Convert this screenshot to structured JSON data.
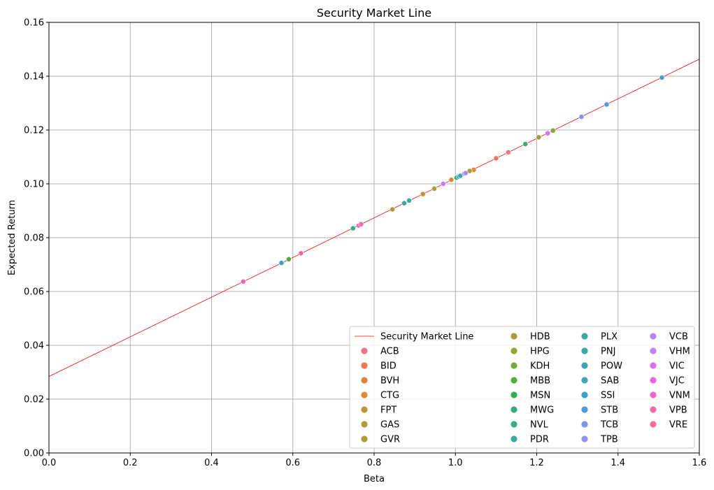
{
  "chart_data": {
    "type": "scatter",
    "title": "Security Market Line",
    "xlabel": "Beta",
    "ylabel": "Expected Return",
    "xlim": [
      0,
      1.6
    ],
    "ylim": [
      0,
      0.16
    ],
    "xticks": [
      "0.0",
      "0.2",
      "0.4",
      "0.6",
      "0.8",
      "1.0",
      "1.2",
      "1.4",
      "1.6"
    ],
    "yticks": [
      "0.00",
      "0.02",
      "0.04",
      "0.06",
      "0.08",
      "0.10",
      "0.12",
      "0.14",
      "0.16"
    ],
    "grid": true,
    "legend_position": "lower-right",
    "line": {
      "name": "Security Market Line",
      "color": "#ff0000",
      "intercept": 0.0284,
      "slope": 0.0737
    },
    "points": [
      {
        "name": "ACB",
        "beta": 1.13,
        "ret": 0.1117,
        "color": "#f77189"
      },
      {
        "name": "BID",
        "beta": 1.1,
        "ret": 0.1095,
        "color": "#f7754f"
      },
      {
        "name": "BVH",
        "beta": 1.045,
        "ret": 0.1052,
        "color": "#e18532"
      },
      {
        "name": "CTG",
        "beta": 0.99,
        "ret": 0.1015,
        "color": "#dc8932"
      },
      {
        "name": "FPT",
        "beta": 0.92,
        "ret": 0.0962,
        "color": "#c39532"
      },
      {
        "name": "GAS",
        "beta": 0.845,
        "ret": 0.0905,
        "color": "#b39c32"
      },
      {
        "name": "GVR",
        "beta": 1.035,
        "ret": 0.1048,
        "color": "#ae9d31"
      },
      {
        "name": "HDB",
        "beta": 0.948,
        "ret": 0.0982,
        "color": "#a4a031"
      },
      {
        "name": "HPG",
        "beta": 1.205,
        "ret": 0.1173,
        "color": "#97a431"
      },
      {
        "name": "KDH",
        "beta": 1.24,
        "ret": 0.1198,
        "color": "#7ba931"
      },
      {
        "name": "MBB",
        "beta": 0.59,
        "ret": 0.072,
        "color": "#50b131"
      },
      {
        "name": "MSN",
        "beta": 1.003,
        "ret": 0.1023,
        "color": "#32b24a"
      },
      {
        "name": "MWG",
        "beta": 1.172,
        "ret": 0.1148,
        "color": "#34af78"
      },
      {
        "name": "NVL",
        "beta": 0.748,
        "ret": 0.0835,
        "color": "#35ad8d"
      },
      {
        "name": "PDR",
        "beta": 0.874,
        "ret": 0.0928,
        "color": "#36ab99"
      },
      {
        "name": "PLX",
        "beta": 0.886,
        "ret": 0.0938,
        "color": "#37aaa1"
      },
      {
        "name": "PNJ",
        "beta": 1.008,
        "ret": 0.1027,
        "color": "#38a9aa"
      },
      {
        "name": "POW",
        "beta": 1.012,
        "ret": 0.103,
        "color": "#39a7b3"
      },
      {
        "name": "SAB",
        "beta": 0.572,
        "ret": 0.0706,
        "color": "#3aa5bc"
      },
      {
        "name": "SSI",
        "beta": 1.508,
        "ret": 0.1395,
        "color": "#3ca1c8"
      },
      {
        "name": "STB",
        "beta": 1.372,
        "ret": 0.1295,
        "color": "#4a9bda"
      },
      {
        "name": "TCB",
        "beta": 1.31,
        "ret": 0.1249,
        "color": "#7c96e8"
      },
      {
        "name": "TPB",
        "beta": 1.022,
        "ret": 0.1038,
        "color": "#998ff0"
      },
      {
        "name": "VCB",
        "beta": 1.025,
        "ret": 0.104,
        "color": "#b186f2"
      },
      {
        "name": "VHM",
        "beta": 0.97,
        "ret": 0.1,
        "color": "#c77cf2"
      },
      {
        "name": "VIC",
        "beta": 1.227,
        "ret": 0.1188,
        "color": "#dd6ef1"
      },
      {
        "name": "VJC",
        "beta": 0.762,
        "ret": 0.0845,
        "color": "#f062e6"
      },
      {
        "name": "VNM",
        "beta": 0.478,
        "ret": 0.0637,
        "color": "#f663c7"
      },
      {
        "name": "VPB",
        "beta": 0.62,
        "ret": 0.0742,
        "color": "#f767ae"
      },
      {
        "name": "VRE",
        "beta": 0.768,
        "ret": 0.085,
        "color": "#f66c9b"
      }
    ]
  }
}
